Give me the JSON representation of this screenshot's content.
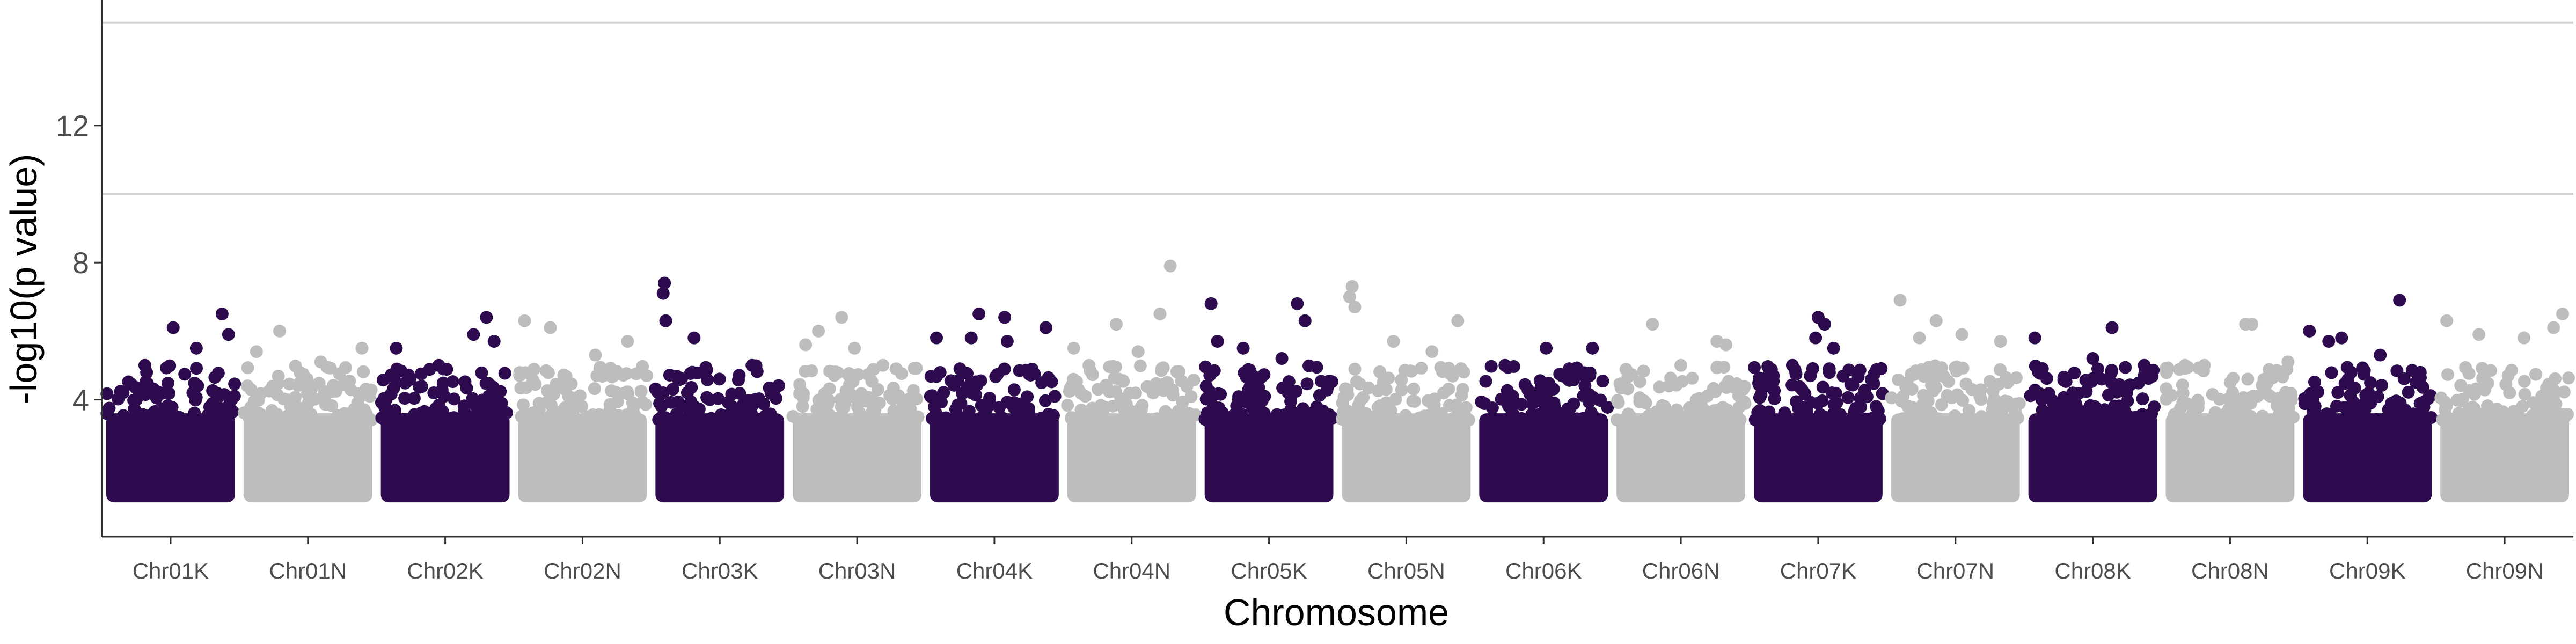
{
  "chart_data": {
    "type": "scatter",
    "title": "",
    "xlabel": "Chromosome",
    "ylabel": "-log10(p value)",
    "ylim": [
      0,
      15.5
    ],
    "y_ticks": [
      4,
      8,
      12
    ],
    "y_tick_labels": [
      "4",
      "8",
      "12"
    ],
    "grid": false,
    "reference_lines": [
      {
        "y": 15.7,
        "style": "dashed",
        "color": "#333333"
      },
      {
        "y": 15.0,
        "style": "solid",
        "color": "#cccccc"
      },
      {
        "y": 10.0,
        "style": "solid",
        "color": "#cccccc"
      }
    ],
    "colors": {
      "odd": "#2d0b4e",
      "even": "#bdbdbd"
    },
    "min_value": 1.0,
    "categories": [
      "Chr01K",
      "Chr01N",
      "Chr02K",
      "Chr02N",
      "Chr03K",
      "Chr03N",
      "Chr04K",
      "Chr04N",
      "Chr05K",
      "Chr05N",
      "Chr06K",
      "Chr06N",
      "Chr07K",
      "Chr07N",
      "Chr08K",
      "Chr08N",
      "Chr09K",
      "Chr09N"
    ],
    "series": [
      {
        "chromosome": "Chr01K",
        "max": 6.5,
        "top_points": [
          [
            0.9,
            6.5
          ],
          [
            0.52,
            6.1
          ],
          [
            0.95,
            5.9
          ],
          [
            0.7,
            5.5
          ],
          [
            0.3,
            5.0
          ]
        ]
      },
      {
        "chromosome": "Chr01N",
        "max": 6.0,
        "top_points": [
          [
            0.28,
            6.0
          ],
          [
            0.1,
            5.4
          ],
          [
            0.92,
            5.5
          ],
          [
            0.6,
            5.1
          ]
        ]
      },
      {
        "chromosome": "Chr02K",
        "max": 6.4,
        "top_points": [
          [
            0.82,
            6.4
          ],
          [
            0.72,
            5.9
          ],
          [
            0.88,
            5.7
          ],
          [
            0.12,
            5.5
          ],
          [
            0.45,
            5.0
          ]
        ]
      },
      {
        "chromosome": "Chr02N",
        "max": 6.3,
        "top_points": [
          [
            0.05,
            6.3
          ],
          [
            0.25,
            6.1
          ],
          [
            0.85,
            5.7
          ],
          [
            0.6,
            5.3
          ]
        ]
      },
      {
        "chromosome": "Chr03K",
        "max": 7.4,
        "top_points": [
          [
            0.07,
            7.4
          ],
          [
            0.06,
            7.1
          ],
          [
            0.08,
            6.3
          ],
          [
            0.3,
            5.8
          ],
          [
            0.75,
            5.0
          ]
        ]
      },
      {
        "chromosome": "Chr03N",
        "max": 6.4,
        "top_points": [
          [
            0.38,
            6.4
          ],
          [
            0.2,
            6.0
          ],
          [
            0.48,
            5.5
          ],
          [
            0.1,
            5.6
          ],
          [
            0.7,
            5.0
          ]
        ]
      },
      {
        "chromosome": "Chr04K",
        "max": 6.5,
        "top_points": [
          [
            0.38,
            6.5
          ],
          [
            0.58,
            6.4
          ],
          [
            0.9,
            6.1
          ],
          [
            0.05,
            5.8
          ],
          [
            0.32,
            5.8
          ],
          [
            0.6,
            5.7
          ]
        ]
      },
      {
        "chromosome": "Chr04N",
        "max": 7.9,
        "top_points": [
          [
            0.8,
            7.9
          ],
          [
            0.72,
            6.5
          ],
          [
            0.38,
            6.2
          ],
          [
            0.05,
            5.5
          ],
          [
            0.55,
            5.4
          ]
        ]
      },
      {
        "chromosome": "Chr05K",
        "max": 6.8,
        "top_points": [
          [
            0.05,
            6.8
          ],
          [
            0.72,
            6.8
          ],
          [
            0.78,
            6.3
          ],
          [
            0.1,
            5.7
          ],
          [
            0.3,
            5.5
          ],
          [
            0.6,
            5.2
          ]
        ]
      },
      {
        "chromosome": "Chr05N",
        "max": 7.3,
        "top_points": [
          [
            0.08,
            7.3
          ],
          [
            0.06,
            7.0
          ],
          [
            0.1,
            6.7
          ],
          [
            0.9,
            6.3
          ],
          [
            0.4,
            5.7
          ],
          [
            0.7,
            5.4
          ]
        ]
      },
      {
        "chromosome": "Chr06K",
        "max": 5.5,
        "top_points": [
          [
            0.52,
            5.5
          ],
          [
            0.88,
            5.5
          ],
          [
            0.2,
            5.0
          ],
          [
            0.7,
            4.9
          ]
        ]
      },
      {
        "chromosome": "Chr06N",
        "max": 6.2,
        "top_points": [
          [
            0.28,
            6.2
          ],
          [
            0.78,
            5.7
          ],
          [
            0.85,
            5.6
          ],
          [
            0.5,
            5.0
          ]
        ]
      },
      {
        "chromosome": "Chr07K",
        "max": 6.4,
        "top_points": [
          [
            0.5,
            6.4
          ],
          [
            0.55,
            6.2
          ],
          [
            0.48,
            5.8
          ],
          [
            0.62,
            5.5
          ],
          [
            0.3,
            5.0
          ]
        ]
      },
      {
        "chromosome": "Chr07N",
        "max": 6.9,
        "top_points": [
          [
            0.07,
            6.9
          ],
          [
            0.35,
            6.3
          ],
          [
            0.55,
            5.9
          ],
          [
            0.22,
            5.8
          ],
          [
            0.85,
            5.7
          ]
        ]
      },
      {
        "chromosome": "Chr08K",
        "max": 6.1,
        "top_points": [
          [
            0.65,
            6.1
          ],
          [
            0.05,
            5.8
          ],
          [
            0.5,
            5.2
          ],
          [
            0.9,
            5.0
          ]
        ]
      },
      {
        "chromosome": "Chr08N",
        "max": 6.2,
        "top_points": [
          [
            0.62,
            6.2
          ],
          [
            0.67,
            6.2
          ],
          [
            0.3,
            5.0
          ],
          [
            0.95,
            5.1
          ]
        ]
      },
      {
        "chromosome": "Chr09K",
        "max": 6.9,
        "top_points": [
          [
            0.75,
            6.9
          ],
          [
            0.05,
            6.0
          ],
          [
            0.2,
            5.7
          ],
          [
            0.3,
            5.8
          ],
          [
            0.6,
            5.3
          ]
        ]
      },
      {
        "chromosome": "Chr09N",
        "max": 6.5,
        "top_points": [
          [
            0.95,
            6.5
          ],
          [
            0.88,
            6.1
          ],
          [
            0.3,
            5.9
          ],
          [
            0.05,
            6.3
          ],
          [
            0.65,
            5.8
          ]
        ]
      }
    ]
  }
}
